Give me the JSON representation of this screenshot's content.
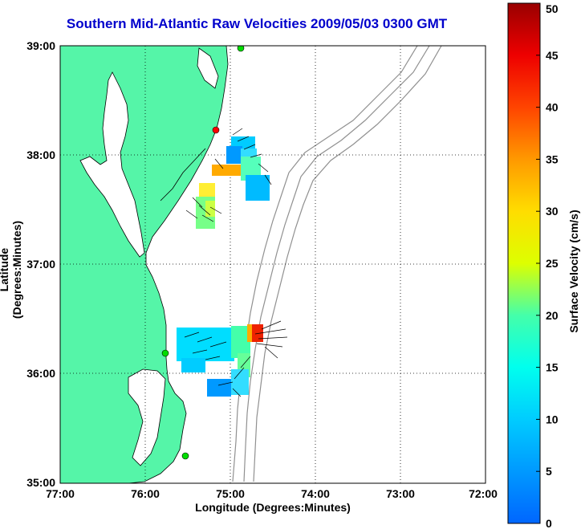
{
  "title": "Southern Mid-Atlantic Raw Velocities 2009/05/03 0300 GMT",
  "map": {
    "xlabel": "Longitude (Degrees:Minutes)",
    "ylabel": "Latitude (Degrees:Minutes)",
    "x_ticks": [
      "77:00",
      "76:00",
      "75:00",
      "74:00",
      "73:00",
      "72:00"
    ],
    "y_ticks": [
      "39:00",
      "38:00",
      "37:00",
      "36:00",
      "35:00"
    ],
    "lon_range": [
      -77,
      -72
    ],
    "lat_range": [
      35,
      39
    ],
    "grid": "dotted",
    "land_color": "#55f5a8",
    "coast_color": "#000000",
    "bathymetry_color": "#909090",
    "station_color": "#00dd00",
    "station_color_alt": "#ff0000"
  },
  "colorbar": {
    "label": "Surface Velocity (cm/s)",
    "ticks": [
      "50",
      "45",
      "40",
      "35",
      "30",
      "25",
      "20",
      "15",
      "10",
      "5",
      "0"
    ],
    "min": 0,
    "max": 50
  }
}
